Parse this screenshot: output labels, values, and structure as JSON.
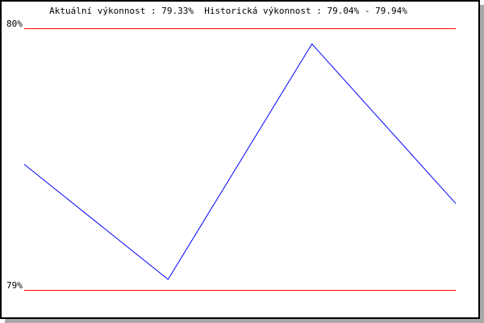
{
  "chart_data": {
    "type": "line",
    "title": "Aktuální výkonnost : 79.33%  Historická výkonnost : 79.04% - 79.94%",
    "ylim": [
      79,
      80
    ],
    "ytick_labels": [
      "80%",
      "79%"
    ],
    "yticks": [
      80,
      79
    ],
    "grid": false,
    "series": [
      {
        "values": [
          79.48,
          79.04,
          79.94,
          79.33
        ],
        "color": "#0000ff"
      }
    ],
    "reference_line_color": "#ff0000"
  }
}
